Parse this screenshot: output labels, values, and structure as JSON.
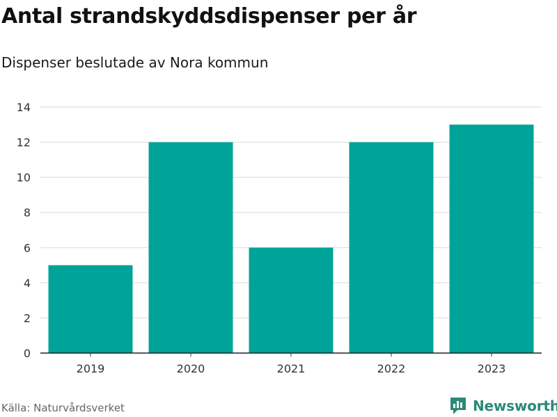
{
  "title": "Antal strandskyddsdispenser per år",
  "subtitle": "Dispenser beslutade av Nora kommun",
  "source": "Källa: Naturvårdsverket",
  "brand": {
    "name": "Newsworthy",
    "logo_icon": "bar-chart-logo-icon",
    "color": "#2a8a78"
  },
  "chart_data": {
    "type": "bar",
    "categories": [
      "2019",
      "2020",
      "2021",
      "2022",
      "2023"
    ],
    "values": [
      5,
      12,
      6,
      12,
      13
    ],
    "ylim": [
      0,
      14
    ],
    "yticks": [
      0,
      2,
      4,
      6,
      8,
      10,
      12,
      14
    ],
    "grid": true,
    "bar_color": "#00a398",
    "xlabel": "",
    "ylabel": ""
  }
}
